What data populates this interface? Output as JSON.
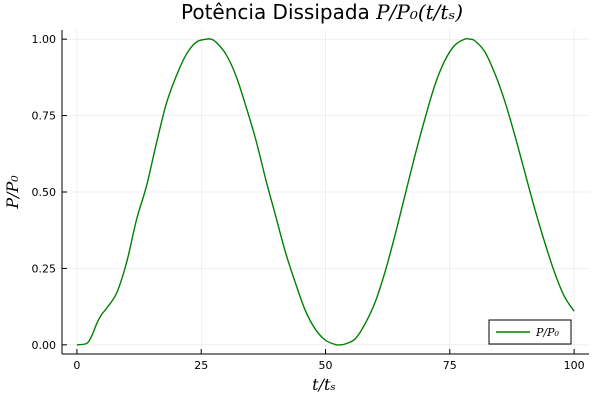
{
  "chart_data": {
    "type": "line",
    "title": {
      "prefix": "Potência Dissipada ",
      "math": "P/P₀(t/tₛ)"
    },
    "xlabel": "t/tₛ",
    "ylabel": "P/P₀",
    "xlim": [
      -3,
      103
    ],
    "ylim": [
      -0.03,
      1.03
    ],
    "xticks": [
      0,
      25,
      50,
      75,
      100
    ],
    "xtick_labels": [
      "0",
      "25",
      "50",
      "75",
      "100"
    ],
    "yticks": [
      0.0,
      0.25,
      0.5,
      0.75,
      1.0
    ],
    "ytick_labels": [
      "0.00",
      "0.25",
      "0.50",
      "0.75",
      "1.00"
    ],
    "grid": true,
    "legend_position": "bottom-right",
    "series": [
      {
        "name": "P/P₀",
        "color": "#008000",
        "x": [
          0,
          2,
          3,
          4,
          5,
          6,
          8,
          10,
          12,
          14,
          16,
          18,
          20,
          22,
          24,
          26,
          27,
          28,
          30,
          32,
          34,
          36,
          38,
          40,
          42,
          44,
          46,
          48,
          50,
          52,
          53,
          54,
          56,
          58,
          60,
          62,
          64,
          66,
          68,
          70,
          72,
          74,
          76,
          78,
          79,
          80,
          82,
          84,
          86,
          88,
          90,
          92,
          94,
          96,
          98,
          100
        ],
        "y": [
          0.0,
          0.005,
          0.03,
          0.07,
          0.1,
          0.12,
          0.17,
          0.27,
          0.41,
          0.52,
          0.66,
          0.79,
          0.88,
          0.95,
          0.99,
          1.0,
          1.0,
          0.99,
          0.95,
          0.88,
          0.78,
          0.67,
          0.54,
          0.42,
          0.3,
          0.2,
          0.11,
          0.05,
          0.015,
          0.001,
          0.0,
          0.003,
          0.02,
          0.07,
          0.14,
          0.24,
          0.36,
          0.49,
          0.62,
          0.74,
          0.85,
          0.93,
          0.98,
          1.0,
          1.0,
          0.995,
          0.96,
          0.89,
          0.8,
          0.69,
          0.57,
          0.45,
          0.34,
          0.24,
          0.16,
          0.11
        ]
      }
    ]
  }
}
